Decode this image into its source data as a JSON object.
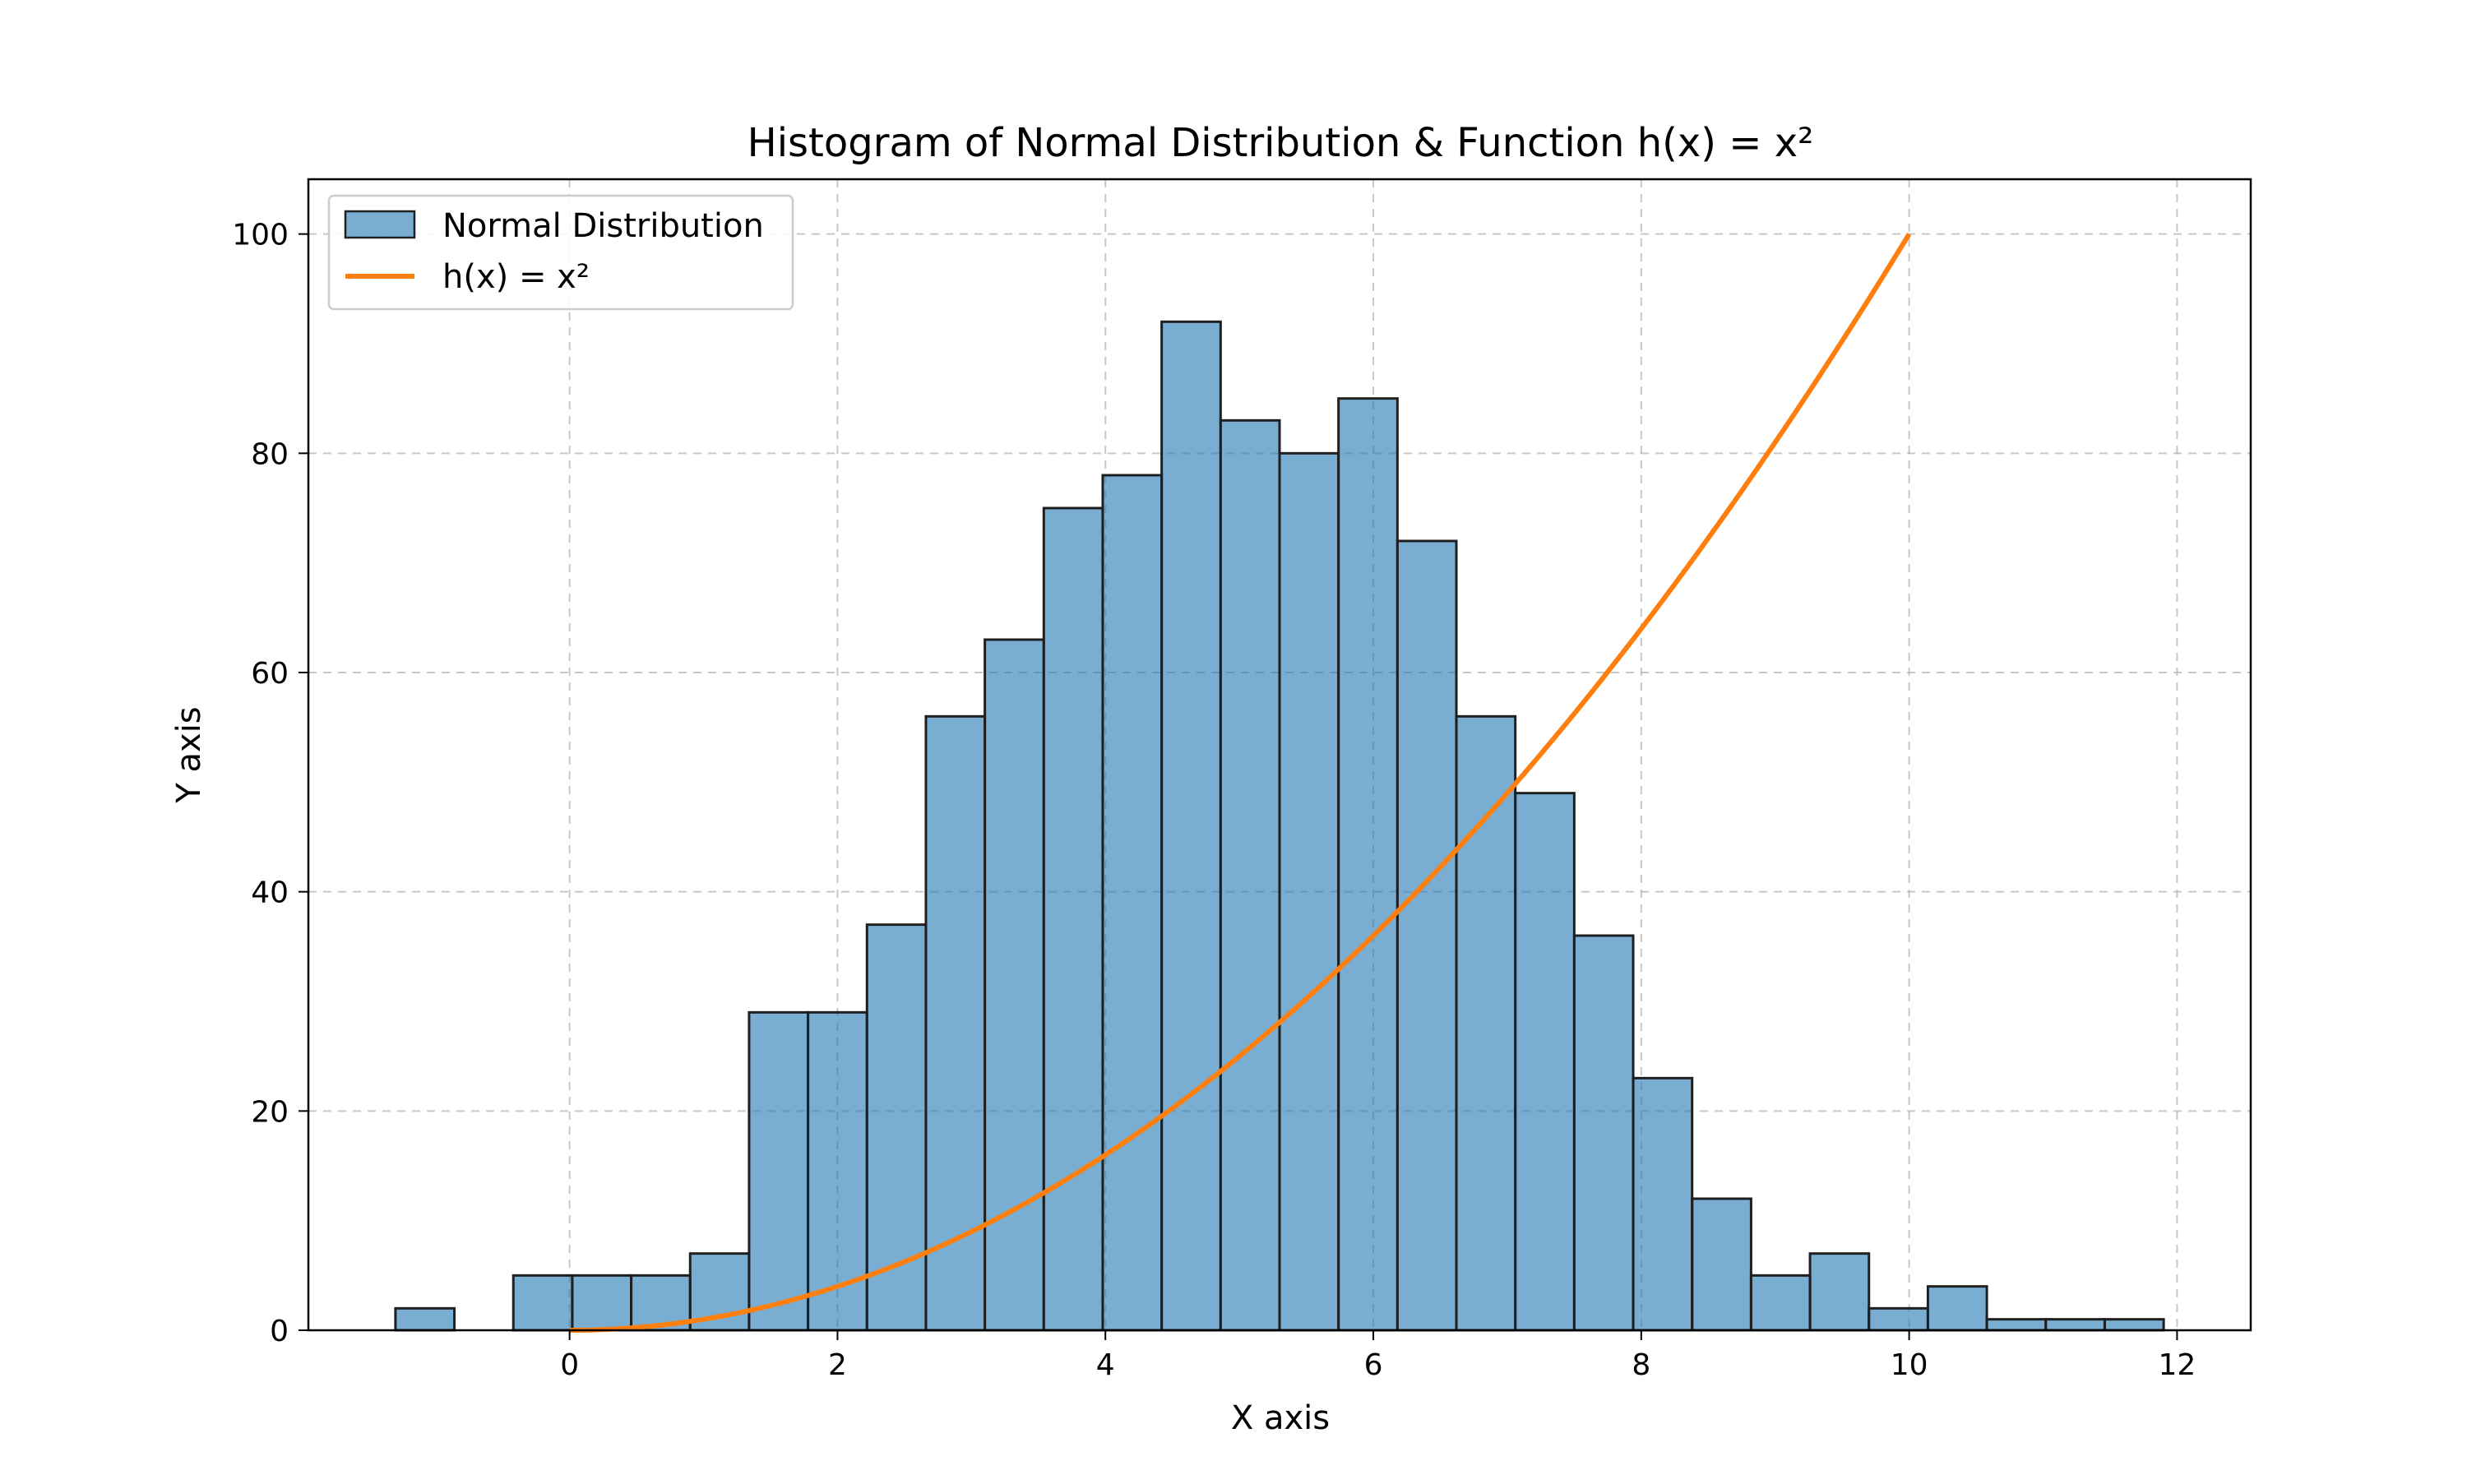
{
  "chart_data": {
    "type": "bar",
    "title": "Histogram of Normal Distribution & Function h(x) = x²",
    "xlabel": "X axis",
    "ylabel": "Y axis",
    "xlim": [
      -1.95,
      12.55
    ],
    "ylim": [
      0,
      105
    ],
    "xticks": [
      0,
      2,
      4,
      6,
      8,
      10,
      12
    ],
    "yticks": [
      0,
      20,
      40,
      60,
      80,
      100
    ],
    "grid": true,
    "legend_position": "top-left",
    "histogram": {
      "name": "Normal Distribution",
      "color": "#1f77b4",
      "bin_start": -1.3,
      "bin_width": 0.44,
      "counts": [
        2,
        0,
        5,
        5,
        5,
        7,
        29,
        29,
        37,
        56,
        63,
        75,
        78,
        92,
        83,
        80,
        85,
        72,
        56,
        49,
        36,
        23,
        12,
        5,
        7,
        2,
        4,
        1,
        1,
        1
      ]
    },
    "curve": {
      "name": "h(x) = x²",
      "color": "#ff7f0e",
      "function": "x^2",
      "x_range": [
        0,
        10
      ]
    }
  }
}
